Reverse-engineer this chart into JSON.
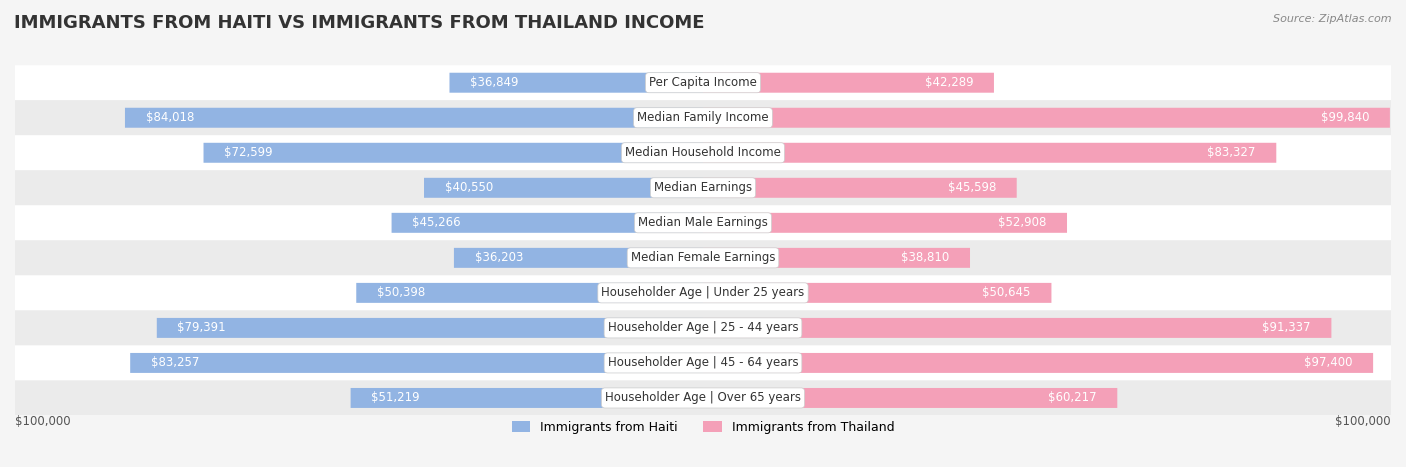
{
  "title": "IMMIGRANTS FROM HAITI VS IMMIGRANTS FROM THAILAND INCOME",
  "source": "Source: ZipAtlas.com",
  "categories": [
    "Per Capita Income",
    "Median Family Income",
    "Median Household Income",
    "Median Earnings",
    "Median Male Earnings",
    "Median Female Earnings",
    "Householder Age | Under 25 years",
    "Householder Age | 25 - 44 years",
    "Householder Age | 45 - 64 years",
    "Householder Age | Over 65 years"
  ],
  "haiti_values": [
    36849,
    84018,
    72599,
    40550,
    45266,
    36203,
    50398,
    79391,
    83257,
    51219
  ],
  "thailand_values": [
    42289,
    99840,
    83327,
    45598,
    52908,
    38810,
    50645,
    91337,
    97400,
    60217
  ],
  "haiti_labels": [
    "$36,849",
    "$84,018",
    "$72,599",
    "$40,550",
    "$45,266",
    "$36,203",
    "$50,398",
    "$79,391",
    "$83,257",
    "$51,219"
  ],
  "thailand_labels": [
    "$42,289",
    "$99,840",
    "$83,327",
    "$45,598",
    "$52,908",
    "$38,810",
    "$50,645",
    "$91,337",
    "$97,400",
    "$60,217"
  ],
  "haiti_color": "#92b4e3",
  "thailand_color": "#f4a0b8",
  "haiti_label_color_inside": "#ffffff",
  "haiti_label_color_outside": "#666666",
  "thailand_label_color_inside": "#ffffff",
  "thailand_label_color_outside": "#666666",
  "max_value": 100000,
  "legend_haiti": "Immigrants from Haiti",
  "legend_thailand": "Immigrants from Thailand",
  "background_color": "#f5f5f5",
  "row_bg_color": "#ffffff",
  "row_alt_bg_color": "#f0f0f0",
  "title_fontsize": 13,
  "label_fontsize": 8.5,
  "category_fontsize": 8.5
}
